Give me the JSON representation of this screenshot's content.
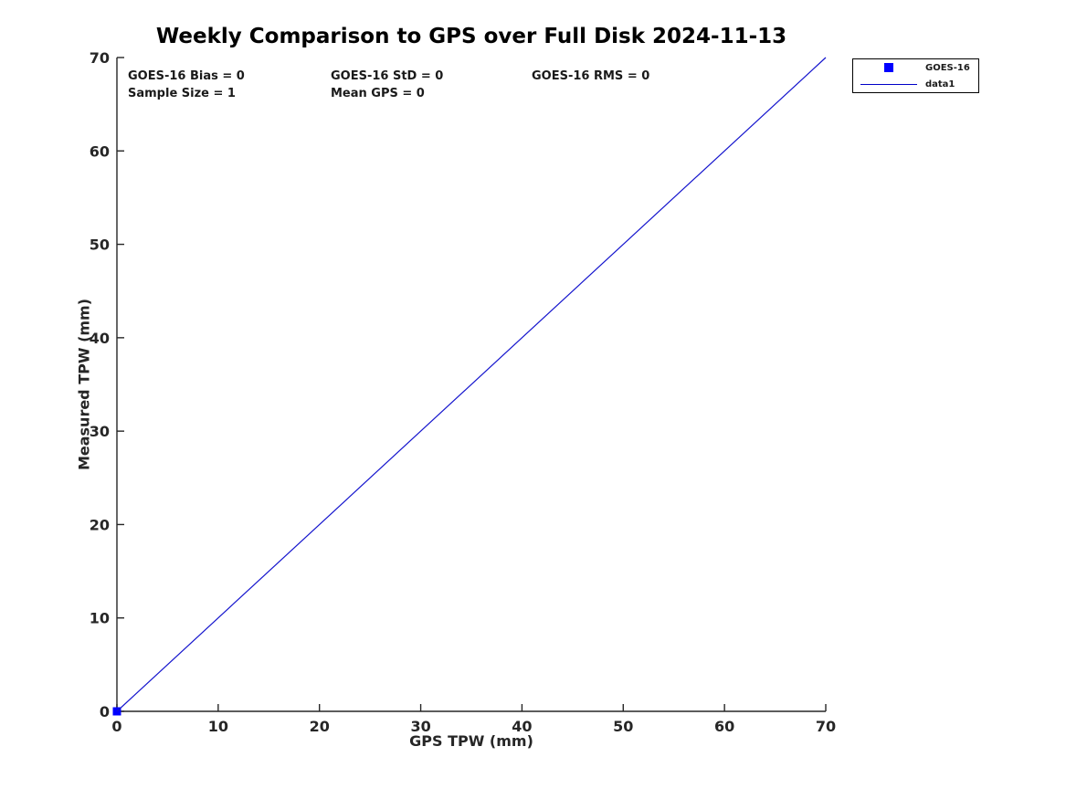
{
  "chart_data": {
    "type": "scatter",
    "title": "Weekly Comparison to GPS over Full Disk 2024-11-13",
    "xlabel": "GPS TPW (mm)",
    "ylabel": "Measured TPW (mm)",
    "xlim": [
      0,
      70
    ],
    "ylim": [
      0,
      70
    ],
    "xticks": [
      0,
      10,
      20,
      30,
      40,
      50,
      60,
      70
    ],
    "yticks": [
      0,
      10,
      20,
      30,
      40,
      50,
      60,
      70
    ],
    "grid": false,
    "legend_position": "outside-top-right",
    "axis_color": "#262626",
    "series": [
      {
        "name": "GOES-16",
        "type": "scatter",
        "marker": "square",
        "color": "#0000ff",
        "points": [
          [
            0,
            0
          ]
        ]
      },
      {
        "name": "data1",
        "type": "line",
        "color": "#1414cd",
        "points": [
          [
            0,
            0
          ],
          [
            70,
            70
          ]
        ]
      }
    ],
    "annotations": [
      {
        "text": "GOES-16 Bias = 0"
      },
      {
        "text": "GOES-16 StD = 0"
      },
      {
        "text": "GOES-16 RMS = 0"
      },
      {
        "text": "Sample Size = 1"
      },
      {
        "text": "Mean GPS = 0"
      }
    ],
    "stats": {
      "bias": 0,
      "std": 0,
      "rms": 0,
      "sample_size": 1,
      "mean_gps": 0
    }
  }
}
